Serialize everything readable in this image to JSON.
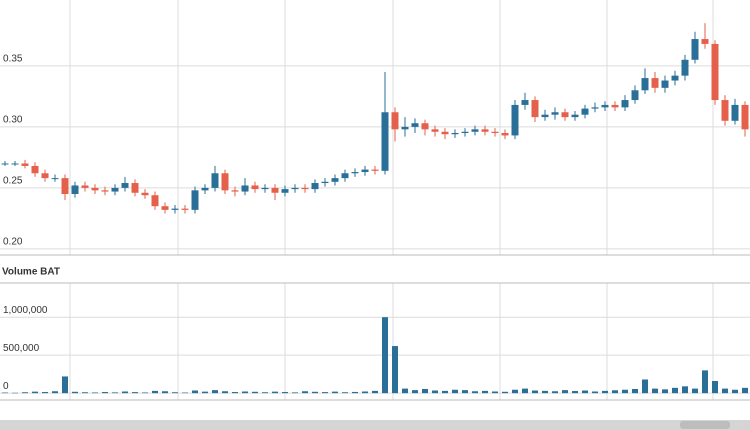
{
  "chart_data": {
    "type": "candlestick",
    "up_color": "#2a6f97",
    "down_color": "#e5604a",
    "volume_color": "#2a6f97",
    "grid": true,
    "ylim": [
      0.195,
      0.404
    ],
    "yticks": [
      {
        "value": 0.2,
        "label": "0.20"
      },
      {
        "value": 0.25,
        "label": "0.25"
      },
      {
        "value": 0.3,
        "label": "0.30"
      },
      0.35
    ],
    "open": [
      0.27,
      0.27,
      0.27,
      0.268,
      0.262,
      0.258,
      0.258,
      0.245,
      0.252,
      0.25,
      0.248,
      0.247,
      0.25,
      0.254,
      0.246,
      0.244,
      0.235,
      0.232,
      0.233,
      0.232,
      0.248,
      0.25,
      0.262,
      0.248,
      0.247,
      0.252,
      0.249,
      0.25,
      0.246,
      0.249,
      0.25,
      0.249,
      0.254,
      0.255,
      0.258,
      0.262,
      0.263,
      0.265,
      0.264,
      0.312,
      0.298,
      0.3,
      0.303,
      0.298,
      0.296,
      0.294,
      0.295,
      0.296,
      0.298,
      0.296,
      0.295,
      0.293,
      0.318,
      0.322,
      0.308,
      0.31,
      0.312,
      0.308,
      0.31,
      0.315,
      0.316,
      0.318,
      0.316,
      0.322,
      0.33,
      0.34,
      0.332,
      0.338,
      0.342,
      0.355,
      0.372,
      0.368,
      0.322,
      0.305,
      0.318
    ],
    "high": [
      0.272,
      0.272,
      0.273,
      0.271,
      0.265,
      0.261,
      0.261,
      0.255,
      0.255,
      0.253,
      0.251,
      0.253,
      0.259,
      0.257,
      0.249,
      0.247,
      0.238,
      0.236,
      0.236,
      0.251,
      0.253,
      0.268,
      0.265,
      0.251,
      0.258,
      0.255,
      0.253,
      0.253,
      0.252,
      0.253,
      0.253,
      0.257,
      0.258,
      0.261,
      0.265,
      0.266,
      0.268,
      0.268,
      0.345,
      0.316,
      0.308,
      0.307,
      0.306,
      0.301,
      0.299,
      0.298,
      0.299,
      0.301,
      0.301,
      0.299,
      0.298,
      0.322,
      0.328,
      0.325,
      0.314,
      0.316,
      0.315,
      0.313,
      0.318,
      0.32,
      0.321,
      0.321,
      0.326,
      0.334,
      0.348,
      0.345,
      0.342,
      0.346,
      0.359,
      0.378,
      0.385,
      0.371,
      0.326,
      0.323,
      0.321
    ],
    "low": [
      0.268,
      0.268,
      0.266,
      0.259,
      0.255,
      0.255,
      0.24,
      0.242,
      0.247,
      0.245,
      0.244,
      0.244,
      0.247,
      0.243,
      0.241,
      0.232,
      0.229,
      0.229,
      0.229,
      0.229,
      0.245,
      0.247,
      0.245,
      0.243,
      0.244,
      0.246,
      0.246,
      0.24,
      0.243,
      0.246,
      0.246,
      0.246,
      0.251,
      0.252,
      0.255,
      0.259,
      0.26,
      0.261,
      0.261,
      0.288,
      0.292,
      0.295,
      0.293,
      0.292,
      0.29,
      0.291,
      0.292,
      0.293,
      0.293,
      0.292,
      0.29,
      0.29,
      0.314,
      0.304,
      0.305,
      0.306,
      0.305,
      0.305,
      0.307,
      0.312,
      0.313,
      0.313,
      0.313,
      0.319,
      0.327,
      0.328,
      0.328,
      0.334,
      0.338,
      0.352,
      0.364,
      0.318,
      0.301,
      0.302,
      0.292
    ],
    "close": [
      0.27,
      0.27,
      0.268,
      0.262,
      0.258,
      0.258,
      0.245,
      0.252,
      0.25,
      0.248,
      0.247,
      0.25,
      0.254,
      0.246,
      0.244,
      0.235,
      0.232,
      0.233,
      0.232,
      0.248,
      0.25,
      0.262,
      0.248,
      0.247,
      0.252,
      0.249,
      0.25,
      0.246,
      0.249,
      0.25,
      0.249,
      0.254,
      0.255,
      0.258,
      0.262,
      0.263,
      0.265,
      0.264,
      0.312,
      0.298,
      0.3,
      0.303,
      0.298,
      0.296,
      0.294,
      0.295,
      0.296,
      0.298,
      0.296,
      0.295,
      0.293,
      0.318,
      0.322,
      0.308,
      0.31,
      0.312,
      0.308,
      0.31,
      0.315,
      0.316,
      0.318,
      0.316,
      0.322,
      0.33,
      0.34,
      0.332,
      0.338,
      0.342,
      0.355,
      0.372,
      0.368,
      0.322,
      0.305,
      0.318,
      0.298
    ],
    "volume_title": "Volume BAT",
    "volume_ylim": [
      -90000,
      1450000
    ],
    "volume_yticks": [
      0,
      {
        "value": 500000,
        "label": "500,000"
      },
      {
        "value": 1000000,
        "label": "1,000,000"
      }
    ],
    "volume": [
      8000,
      5000,
      12000,
      20000,
      15000,
      25000,
      220000,
      18000,
      12000,
      9000,
      15000,
      10000,
      22000,
      14000,
      9000,
      30000,
      25000,
      12000,
      8000,
      35000,
      20000,
      40000,
      25000,
      15000,
      22000,
      18000,
      12000,
      20000,
      15000,
      10000,
      25000,
      18000,
      14000,
      20000,
      12000,
      16000,
      22000,
      30000,
      1000000,
      620000,
      60000,
      40000,
      55000,
      35000,
      30000,
      45000,
      40000,
      25000,
      30000,
      22000,
      18000,
      45000,
      60000,
      35000,
      30000,
      25000,
      40000,
      28000,
      35000,
      22000,
      30000,
      38000,
      45000,
      55000,
      180000,
      60000,
      50000,
      70000,
      90000,
      60000,
      300000,
      160000,
      60000,
      45000,
      70000
    ]
  }
}
